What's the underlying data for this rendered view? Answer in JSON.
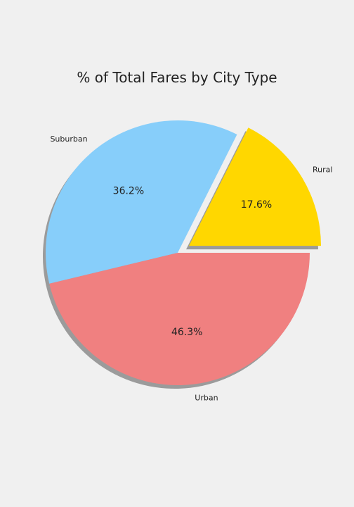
{
  "chart_data": {
    "type": "pie",
    "title": "% of Total Fares by City Type",
    "categories": [
      "Rural",
      "Suburban",
      "Urban"
    ],
    "values": [
      17.6,
      36.2,
      46.3
    ],
    "percent_labels": [
      "17.6%",
      "36.2%",
      "46.3%"
    ],
    "colors": [
      "#ffd700",
      "#87cefa",
      "#f08080"
    ],
    "explode": [
      0.1,
      0,
      0
    ],
    "start_angle_deg": 0,
    "direction": "counterclockwise",
    "shadow": true,
    "legend": "none",
    "grid": false
  }
}
